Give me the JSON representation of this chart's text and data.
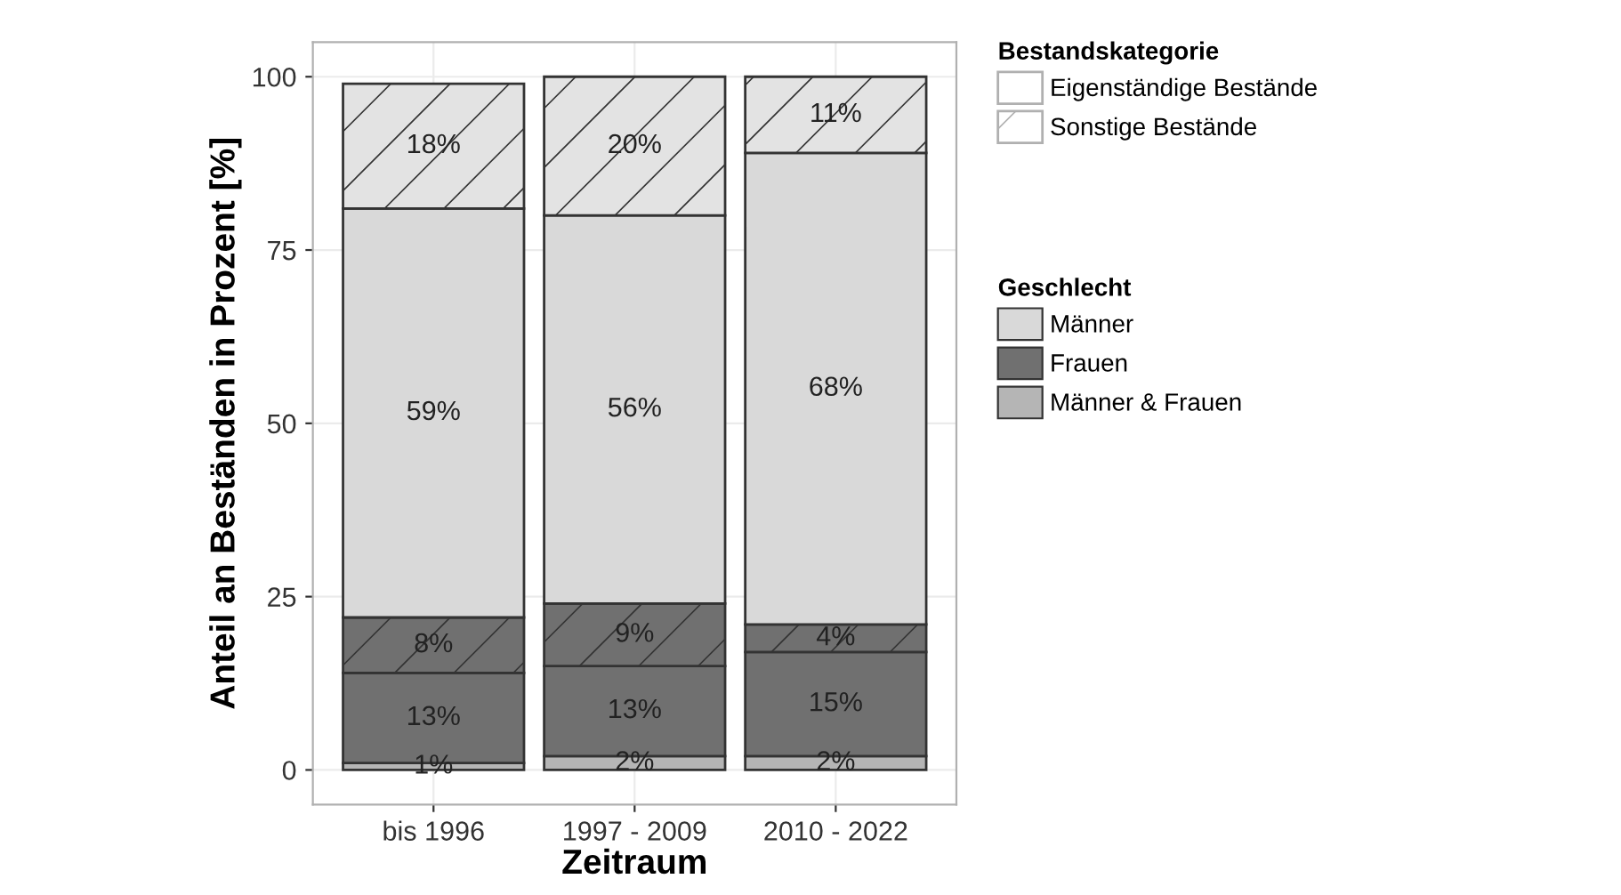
{
  "chart_data": {
    "type": "bar",
    "stacked": true,
    "xlabel": "Zeitraum",
    "ylabel": "Anteil an Beständen in Prozent [%]",
    "categories": [
      "bis 1996",
      "1997 - 2009",
      "2010 - 2022"
    ],
    "series": [
      {
        "name": "Männer & Frauen",
        "color": "#b5b5b5",
        "values": [
          1,
          2,
          2
        ],
        "value_labels": [
          "1%",
          "2%",
          "2%"
        ]
      },
      {
        "name": "Frauen",
        "color": "#707070",
        "values": [
          13,
          13,
          15
        ],
        "value_labels": [
          "13%",
          "13%",
          "15%"
        ]
      },
      {
        "name": null,
        "color": "#707070",
        "values": [
          8,
          9,
          4
        ],
        "value_labels": [
          "8%",
          "9%",
          "4%"
        ]
      },
      {
        "name": "Männer",
        "color": "#d9d9d9",
        "values": [
          59,
          56,
          68
        ],
        "value_labels": [
          "59%",
          "56%",
          "68%"
        ]
      },
      {
        "name": null,
        "color": "#e3e3e3",
        "values": [
          18,
          20,
          11
        ],
        "value_labels": [
          "18%",
          "20%",
          "11%"
        ]
      }
    ],
    "ylim": [
      -5,
      105
    ],
    "yticks": [
      0,
      25,
      50,
      75,
      100
    ],
    "grid": true,
    "legend": "right",
    "legend_title": [
      "Bestandskategorie",
      "Geschlecht"
    ],
    "annotations": [
      "Eigenständige Bestände",
      "Sonstige Bestände"
    ]
  }
}
